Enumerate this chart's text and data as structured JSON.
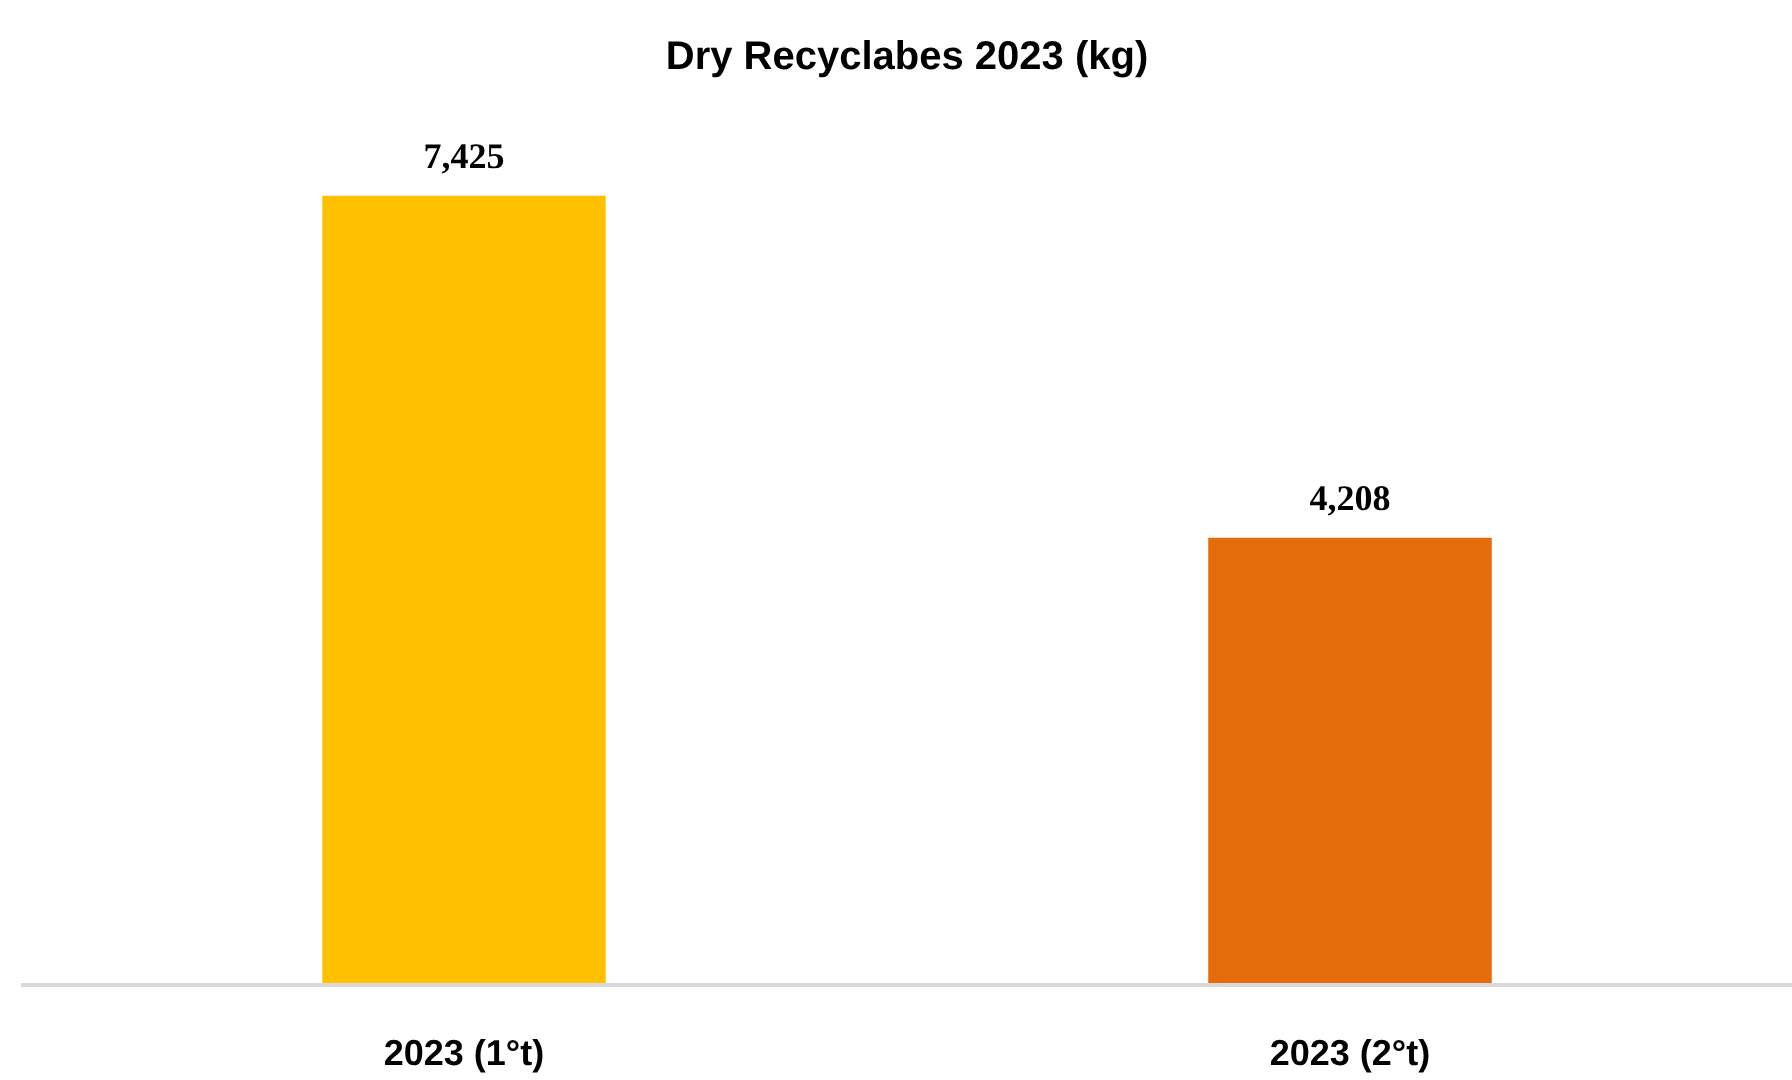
{
  "chart_data": {
    "type": "bar",
    "title": "Dry Recyclabes 2023 (kg)",
    "categories": [
      "2023 (1°t)",
      "2023 (2°t)"
    ],
    "values": [
      7425,
      4208
    ],
    "colors": [
      "#ffc000",
      "#e46c0a"
    ],
    "value_labels": [
      "7,425",
      "4,208"
    ]
  }
}
